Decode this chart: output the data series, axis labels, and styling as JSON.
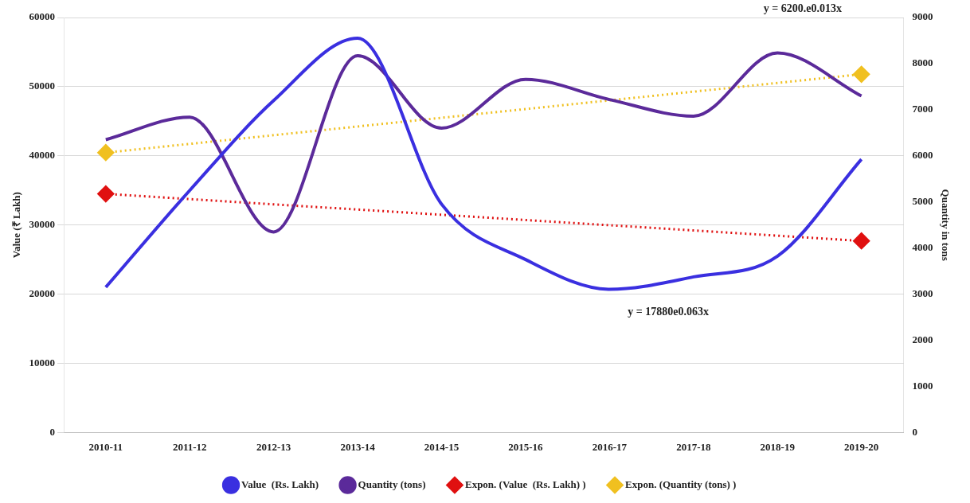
{
  "chart_data": {
    "type": "line",
    "ylabel": "Value (₹ Lakh)",
    "y2label": "Quantity in tons",
    "categories": [
      "2010-11",
      "2011-12",
      "2012-13",
      "2013-14",
      "2014-15",
      "2015-16",
      "2016-17",
      "2017-18",
      "2018-19",
      "2019-20"
    ],
    "series": [
      {
        "name": "Value  (Rs. Lakh)",
        "color": "#3a2fe0",
        "values": [
          21000,
          35000,
          48000,
          57000,
          33000,
          25000,
          20700,
          22500,
          25500,
          39500
        ]
      },
      {
        "name": "Quantity (tons)",
        "color": "#5b2a9a",
        "axis": "y2",
        "values": [
          6350,
          6840,
          4350,
          8170,
          6600,
          7660,
          7220,
          6860,
          8230,
          7300
        ]
      },
      {
        "name": "Expon. (Value  (Rs. Lakh) )",
        "color": "#e01010",
        "line_style": "dotted",
        "marker": "diamond",
        "values": [
          34500,
          null,
          null,
          null,
          null,
          null,
          null,
          null,
          null,
          27700
        ]
      },
      {
        "name": "Expon. (Quantity (tons) )",
        "color": "#f0c020",
        "axis": "y2",
        "line_style": "dotted",
        "marker": "diamond",
        "values": [
          6070,
          null,
          null,
          null,
          null,
          null,
          null,
          null,
          null,
          7770
        ]
      }
    ],
    "ylim": [
      0,
      60000
    ],
    "yticks": [
      0,
      10000,
      20000,
      30000,
      40000,
      50000,
      60000
    ],
    "y2lim": [
      0,
      9000
    ],
    "y2ticks": [
      0,
      1000,
      2000,
      3000,
      4000,
      5000,
      6000,
      7000,
      8000,
      9000
    ],
    "grid": "y",
    "legend": "bottom",
    "marker": "none",
    "line_style": "solid",
    "annotations": [
      "y = 6200.e0.013x",
      "y = 17880e0.063x"
    ]
  }
}
